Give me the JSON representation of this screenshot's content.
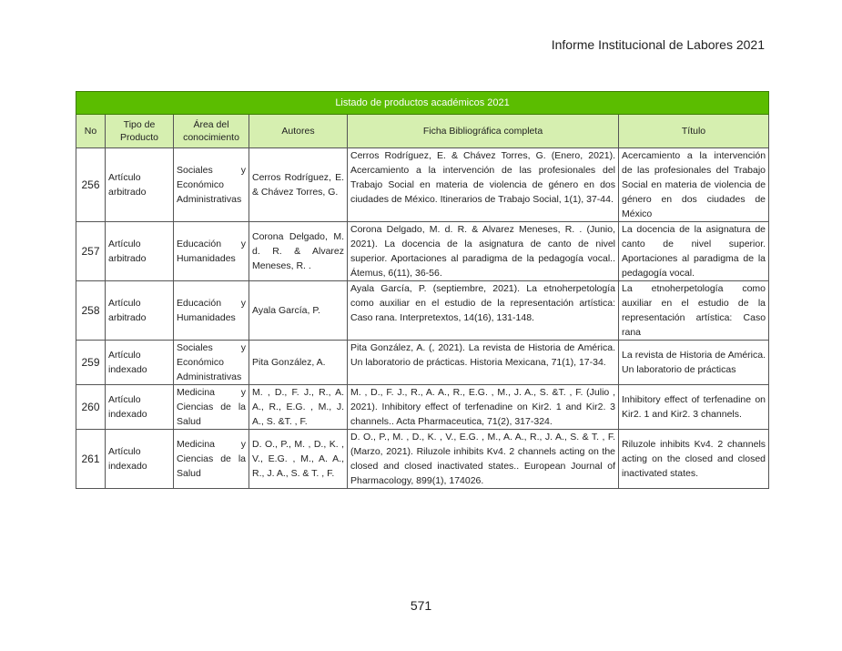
{
  "header": {
    "running_title": "Informe Institucional de Labores 2021"
  },
  "table": {
    "title": "Listado de productos académicos 2021",
    "columns": [
      "No",
      "Tipo de Producto",
      "Área del conocimiento",
      "Autores",
      "Ficha Bibliográfica completa",
      "Título"
    ],
    "rows": [
      {
        "no": "256",
        "tipo": "Artículo arbitrado",
        "area": "Sociales y Económico Administrativas",
        "autores": "Cerros Rodríguez, E. & Chávez Torres, G.",
        "ficha": "Cerros Rodríguez, E. & Chávez Torres, G. (Enero, 2021). Acercamiento a la intervención de las profesionales del Trabajo Social en materia de violencia de género en dos ciudades de México. Itinerarios de Trabajo Social, 1(1), 37-44.",
        "titulo": "Acercamiento a la intervención de las profesionales del Trabajo Social en materia de violencia de género en dos ciudades de México"
      },
      {
        "no": "257",
        "tipo": "Artículo arbitrado",
        "area": "Educación y Humanidades",
        "autores": "Corona Delgado, M. d. R. & Alvarez Meneses, R. .",
        "ficha": "Corona Delgado, M. d. R. & Alvarez Meneses, R. . (Junio, 2021). La docencia de la asignatura de canto de nivel superior. Aportaciones al paradigma de la pedagogía vocal.. Átemus, 6(11), 36-56.",
        "titulo": "La docencia de la asignatura de canto de nivel superior. Aportaciones al paradigma de la pedagogía vocal."
      },
      {
        "no": "258",
        "tipo": "Artículo arbitrado",
        "area": "Educación y Humanidades",
        "autores": "Ayala García, P.",
        "ficha": "Ayala García, P. (septiembre, 2021). La etnoherpetología como auxiliar en el estudio de la representación artística: Caso rana. Interpretextos, 14(16), 131-148.",
        "titulo": "La etnoherpetología como auxiliar en el estudio de la representación artística: Caso rana"
      },
      {
        "no": "259",
        "tipo": "Artículo indexado",
        "area": "Sociales y Económico Administrativas",
        "autores": "Pita González, A.",
        "ficha": "Pita González, A. (, 2021). La revista de Historia de América. Un laboratorio de prácticas. Historia Mexicana, 71(1), 17-34.",
        "titulo": "La revista de Historia de América. Un laboratorio de prácticas"
      },
      {
        "no": "260",
        "tipo": "Artículo indexado",
        "area": "Medicina y Ciencias de la Salud",
        "autores": "M. , D., F. J., R., A. A., R., E.G. , M., J. A., S. &T. , F.",
        "ficha": "M. , D., F. J., R., A. A., R., E.G. , M., J. A., S. &T. , F. (Julio , 2021). Inhibitory effect of terfenadine on Kir2. 1 and Kir2. 3 channels.. Acta Pharmaceutica, 71(2), 317-324.",
        "titulo": "Inhibitory effect of terfenadine on Kir2. 1 and Kir2. 3 channels."
      },
      {
        "no": "261",
        "tipo": "Artículo indexado",
        "area": "Medicina y Ciencias de la Salud",
        "autores": "D. O., P., M. , D., K. , V., E.G. , M., A. A., R., J. A., S. & T. , F.",
        "ficha": "D. O., P., M. , D., K. , V., E.G. , M., A. A., R., J. A., S. & T. , F. (Marzo, 2021). Riluzole inhibits Kv4. 2 channels acting on the closed and closed inactivated states.. European Journal of Pharmacology, 899(1), 174026.",
        "titulo": "Riluzole inhibits Kv4. 2 channels acting on the closed and closed inactivated states."
      }
    ]
  },
  "footer": {
    "page_number": "571"
  },
  "colors": {
    "title_bar": "#5bbd00",
    "header_row": "#d6efb0"
  }
}
